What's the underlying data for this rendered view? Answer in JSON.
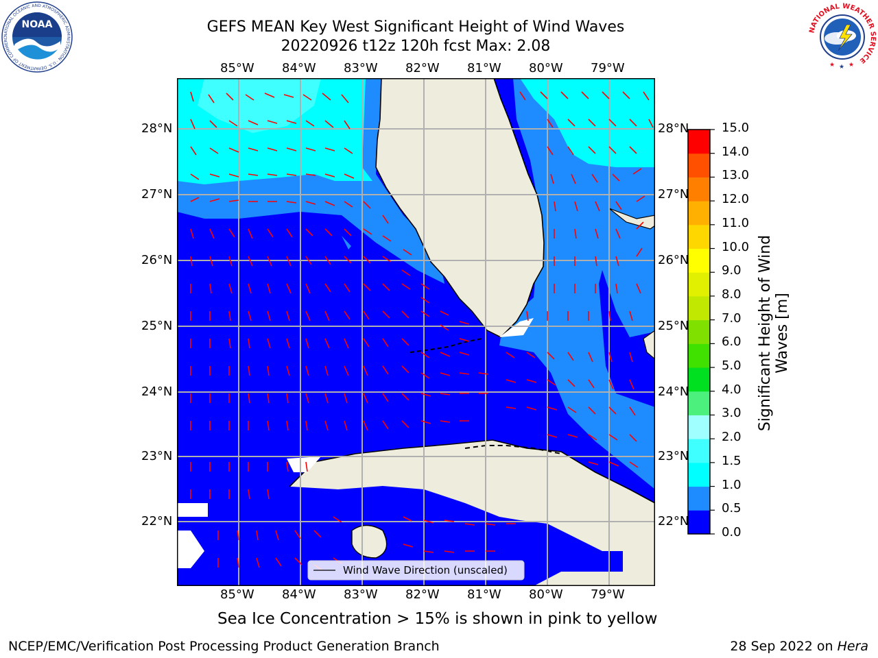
{
  "header": {
    "title_line1": "GEFS MEAN Key West Significant Height of Wind Waves",
    "title_line2": "20220926 t12z 120h fcst   Max: 2.08"
  },
  "logos": {
    "noaa_text": "NOAA",
    "noaa_ring": "NATIONAL OCEANIC AND ATMOSPHERIC ADMINISTRATION · U.S. DEPARTMENT OF COMMERCE",
    "nws_ring": "NATIONAL WEATHER SERVICE"
  },
  "map": {
    "lon_labels": [
      "85°W",
      "84°W",
      "83°W",
      "82°W",
      "81°W",
      "80°W",
      "79°W"
    ],
    "lat_labels": [
      "28°N",
      "27°N",
      "26°N",
      "25°N",
      "24°N",
      "23°N",
      "22°N"
    ],
    "legend_label": "Wind Wave Direction (unscaled)",
    "colors": {
      "land": "#eeecdd",
      "wave_0_05": "#0000ff",
      "wave_05_10": "#1e8cff",
      "wave_10_15": "#00ffff",
      "wave_15_20": "#40ffff",
      "arrow": "#ff0000"
    }
  },
  "colorbar": {
    "ticks": [
      "0.0",
      "0.5",
      "1.0",
      "1.5",
      "2.0",
      "3.0",
      "4.0",
      "5.0",
      "6.0",
      "7.0",
      "8.0",
      "9.0",
      "10.0",
      "11.0",
      "12.0",
      "13.0",
      "14.0",
      "15.0"
    ],
    "colors": [
      "#0000ff",
      "#1e8cff",
      "#00ffff",
      "#40ffff",
      "#a0ffff",
      "#4cf07c",
      "#00e020",
      "#40e000",
      "#80e000",
      "#c0e800",
      "#e0f000",
      "#ffff00",
      "#ffd700",
      "#ffb000",
      "#ff8000",
      "#ff5000",
      "#ff0000"
    ],
    "label": "Significant Height of Wind Waves [m]"
  },
  "caption": "Sea Ice Concentration > 15% is shown in pink to yellow",
  "footer": {
    "left": "NCEP/EMC/Verification Post Processing Product Generation Branch",
    "date": "28 Sep 2022 on ",
    "machine": "Hera"
  }
}
